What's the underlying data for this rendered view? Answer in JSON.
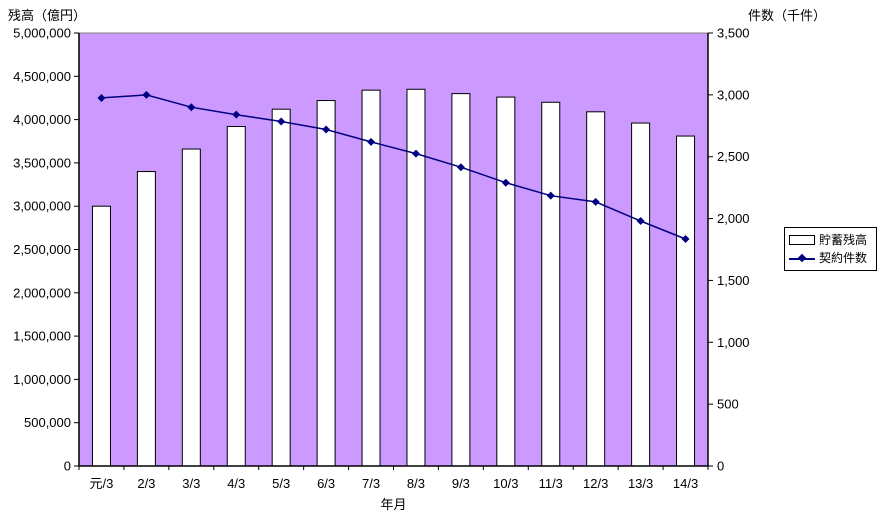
{
  "chart": {
    "left_axis_title": "残高（億円）",
    "right_axis_title": "件数（千件）",
    "x_axis_title": "年月",
    "legend": {
      "bar_label": "貯蓄残高",
      "line_label": "契約件数"
    },
    "colors": {
      "plot_bg": "#CC99FF",
      "plot_border": "#808080",
      "axis": "#000000",
      "bar_fill": "#FFFFFF",
      "bar_stroke": "#000000",
      "line": "#000080",
      "text": "#000000"
    }
  },
  "chart_data": {
    "type": "bar",
    "subtype": "combo-bar-line-dual-axis",
    "title": "",
    "xlabel": "年月",
    "categories": [
      "元/3",
      "2/3",
      "3/3",
      "4/3",
      "5/3",
      "6/3",
      "7/3",
      "8/3",
      "9/3",
      "10/3",
      "11/3",
      "12/3",
      "13/3",
      "14/3"
    ],
    "series": [
      {
        "name": "貯蓄残高",
        "type": "bar",
        "axis": "left",
        "unit": "億円",
        "values": [
          3000000,
          3400000,
          3660000,
          3920000,
          4120000,
          4220000,
          4340000,
          4350000,
          4300000,
          4260000,
          4200000,
          4090000,
          3960000,
          3810000
        ]
      },
      {
        "name": "契約件数",
        "type": "line",
        "axis": "right",
        "unit": "千件",
        "values": [
          2975,
          3000,
          2900,
          2840,
          2785,
          2720,
          2620,
          2525,
          2415,
          2290,
          2185,
          2135,
          1980,
          1835
        ]
      }
    ],
    "left_axis": {
      "label": "残高（億円）",
      "min": 0,
      "max": 5000000,
      "step": 500000
    },
    "right_axis": {
      "label": "件数（千件）",
      "min": 0,
      "max": 3500,
      "step": 500
    },
    "legend_position": "right",
    "grid": false
  }
}
